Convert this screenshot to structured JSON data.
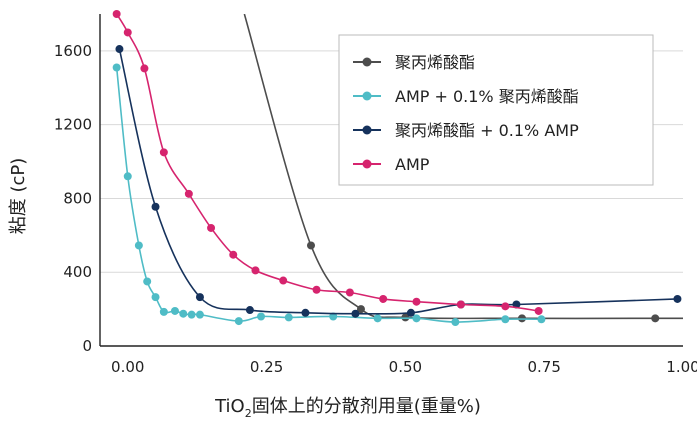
{
  "chart_data": {
    "type": "line",
    "xlabel_main": "TiO",
    "xlabel_sub": "2",
    "xlabel_rest": "固体上的分散剂用量(重量%)",
    "ylabel": "粘度 (cP)",
    "xlim": [
      -0.05,
      1.0
    ],
    "ylim": [
      0,
      1800
    ],
    "x_ticks": [
      "0.00",
      "0.25",
      "0.50",
      "0.75",
      "1.00"
    ],
    "x_tick_values": [
      0,
      0.25,
      0.5,
      0.75,
      1.0
    ],
    "y_ticks": [
      "0",
      "400",
      "800",
      "1200",
      "1600"
    ],
    "y_tick_values": [
      0,
      400,
      800,
      1200,
      1600
    ],
    "grid": "horizontal",
    "legend_position": "top-right",
    "series": [
      {
        "name": "聚丙烯酸酯",
        "color": "#4d4d4d",
        "x": [
          0.33,
          0.42,
          0.5,
          0.71,
          0.95
        ],
        "y": [
          545,
          200,
          155,
          150,
          150
        ],
        "curve_start": [
          0.21,
          1800
        ]
      },
      {
        "name": "AMP + 0.1% 聚丙烯酸酯",
        "color": "#4fbcc6",
        "x": [
          -0.02,
          0.0,
          0.02,
          0.035,
          0.05,
          0.065,
          0.085,
          0.1,
          0.115,
          0.13,
          0.2,
          0.24,
          0.29,
          0.37,
          0.45,
          0.52,
          0.59,
          0.68,
          0.745
        ],
        "y": [
          1510,
          920,
          545,
          350,
          265,
          185,
          190,
          175,
          170,
          170,
          135,
          160,
          155,
          160,
          150,
          150,
          130,
          145,
          145
        ]
      },
      {
        "name": "聚丙烯酸酯 + 0.1% AMP",
        "color": "#16325c",
        "x": [
          -0.015,
          0.05,
          0.13,
          0.22,
          0.32,
          0.41,
          0.51,
          0.6,
          0.7,
          0.99
        ],
        "y": [
          1610,
          755,
          265,
          195,
          180,
          175,
          180,
          225,
          225,
          255
        ]
      },
      {
        "name": "AMP",
        "color": "#d6246e",
        "x": [
          -0.02,
          0.0,
          0.03,
          0.065,
          0.11,
          0.15,
          0.19,
          0.23,
          0.28,
          0.34,
          0.4,
          0.46,
          0.52,
          0.6,
          0.68,
          0.74
        ],
        "y": [
          1800,
          1700,
          1505,
          1050,
          825,
          640,
          495,
          410,
          355,
          305,
          290,
          255,
          240,
          225,
          215,
          190
        ]
      }
    ]
  }
}
